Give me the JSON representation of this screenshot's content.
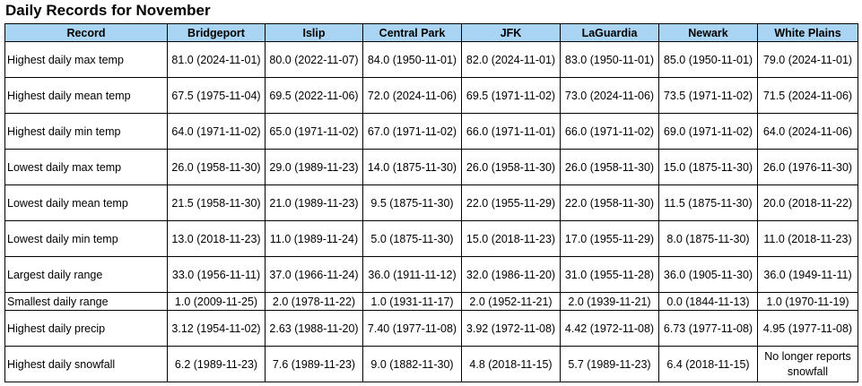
{
  "header": {
    "title": "Daily Records for November"
  },
  "table": {
    "columns": [
      "Record",
      "Bridgeport",
      "Islip",
      "Central Park",
      "JFK",
      "LaGuardia",
      "Newark",
      "White Plains"
    ],
    "rows": [
      [
        "Highest daily max temp",
        "81.0 (2024-11-01)",
        "80.0 (2022-11-07)",
        "84.0 (1950-11-01)",
        "82.0 (2024-11-01)",
        "83.0 (1950-11-01)",
        "85.0 (1950-11-01)",
        "79.0 (2024-11-01)"
      ],
      [
        "Highest daily mean temp",
        "67.5 (1975-11-04)",
        "69.5 (2022-11-06)",
        "72.0 (2024-11-06)",
        "69.5 (1971-11-02)",
        "73.0 (2024-11-06)",
        "73.5 (1971-11-02)",
        "71.5 (2024-11-06)"
      ],
      [
        "Highest daily min temp",
        "64.0 (1971-11-02)",
        "65.0 (1971-11-02)",
        "67.0 (1971-11-02)",
        "66.0 (1971-11-01)",
        "66.0 (1971-11-02)",
        "69.0 (1971-11-02)",
        "64.0 (2024-11-06)"
      ],
      [
        "Lowest daily max temp",
        "26.0 (1958-11-30)",
        "29.0 (1989-11-23)",
        "14.0 (1875-11-30)",
        "26.0 (1958-11-30)",
        "26.0 (1958-11-30)",
        "15.0 (1875-11-30)",
        "26.0 (1976-11-30)"
      ],
      [
        "Lowest daily mean temp",
        "21.5 (1958-11-30)",
        "21.0 (1989-11-23)",
        "9.5 (1875-11-30)",
        "22.0 (1955-11-29)",
        "22.0 (1958-11-30)",
        "11.5 (1875-11-30)",
        "20.0 (2018-11-22)"
      ],
      [
        "Lowest daily min temp",
        "13.0 (2018-11-23)",
        "11.0 (1989-11-24)",
        "5.0 (1875-11-30)",
        "15.0 (2018-11-23)",
        "17.0 (1955-11-29)",
        "8.0 (1875-11-30)",
        "11.0 (2018-11-23)"
      ],
      [
        "Largest daily range",
        "33.0 (1956-11-11)",
        "37.0 (1966-11-24)",
        "36.0 (1911-11-12)",
        "32.0 (1986-11-20)",
        "31.0 (1955-11-28)",
        "36.0 (1905-11-30)",
        "36.0 (1949-11-11)"
      ],
      [
        "Smallest daily range",
        "1.0 (2009-11-25)",
        "2.0 (1978-11-22)",
        "1.0 (1931-11-17)",
        "2.0 (1952-11-21)",
        "2.0 (1939-11-21)",
        "0.0 (1844-11-13)",
        "1.0 (1970-11-19)"
      ],
      [
        "Highest daily precip",
        "3.12 (1954-11-02)",
        "2.63 (1988-11-20)",
        "7.40 (1977-11-08)",
        "3.92 (1972-11-08)",
        "4.42 (1972-11-08)",
        "6.73 (1977-11-08)",
        "4.95 (1977-11-08)"
      ],
      [
        "Highest daily snowfall",
        "6.2 (1989-11-23)",
        "7.6 (1989-11-23)",
        "9.0 (1882-11-30)",
        "4.8 (2018-11-15)",
        "5.7 (1989-11-23)",
        "6.4 (2018-11-15)",
        "No longer reports snowfall"
      ]
    ]
  }
}
